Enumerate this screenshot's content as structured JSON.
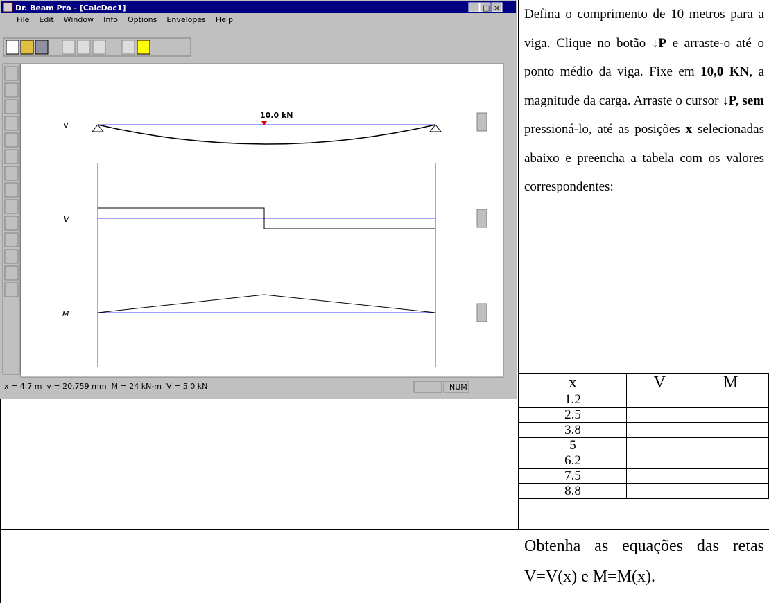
{
  "window": {
    "title": "Dr. Beam Pro - [CalcDoc1]",
    "menu": [
      "File",
      "Edit",
      "Window",
      "Info",
      "Options",
      "Envelopes",
      "Help"
    ],
    "load_label": "10.0 kN",
    "diagram_labels": [
      "v",
      "V",
      "M"
    ],
    "status": "x = 4.7 m  v = 20.759 mm  M = 24 kN-m  V = 5.0 kN",
    "status_indicator": "NUM"
  },
  "instructions": [
    {
      "text": "Defina o comprimento de 10 metros para a viga. Clique no botão ",
      "bold": false
    },
    {
      "text": "↓P",
      "bold": true
    },
    {
      "text": " e arraste-o até o ponto médio da viga. Fixe em ",
      "bold": false
    },
    {
      "text": "10,0 KN",
      "bold": true
    },
    {
      "text": ", a magnitude da carga. Arraste o cursor ",
      "bold": false
    },
    {
      "text": "↓P, sem",
      "bold": true
    },
    {
      "text": " pressioná-lo, até as posições ",
      "bold": false
    },
    {
      "text": "x",
      "bold": true
    },
    {
      "text": " selecionadas abaixo e preencha a tabela com os valores correspondentes:",
      "bold": false
    }
  ],
  "table": {
    "header": [
      "x",
      "V",
      "M"
    ],
    "rows": [
      "1.2",
      "2.5",
      "3.8",
      "5",
      "6.2",
      "7.5",
      "8.8"
    ]
  },
  "question": "Obtenha as equações das retas V=V(x) e M=M(x)."
}
